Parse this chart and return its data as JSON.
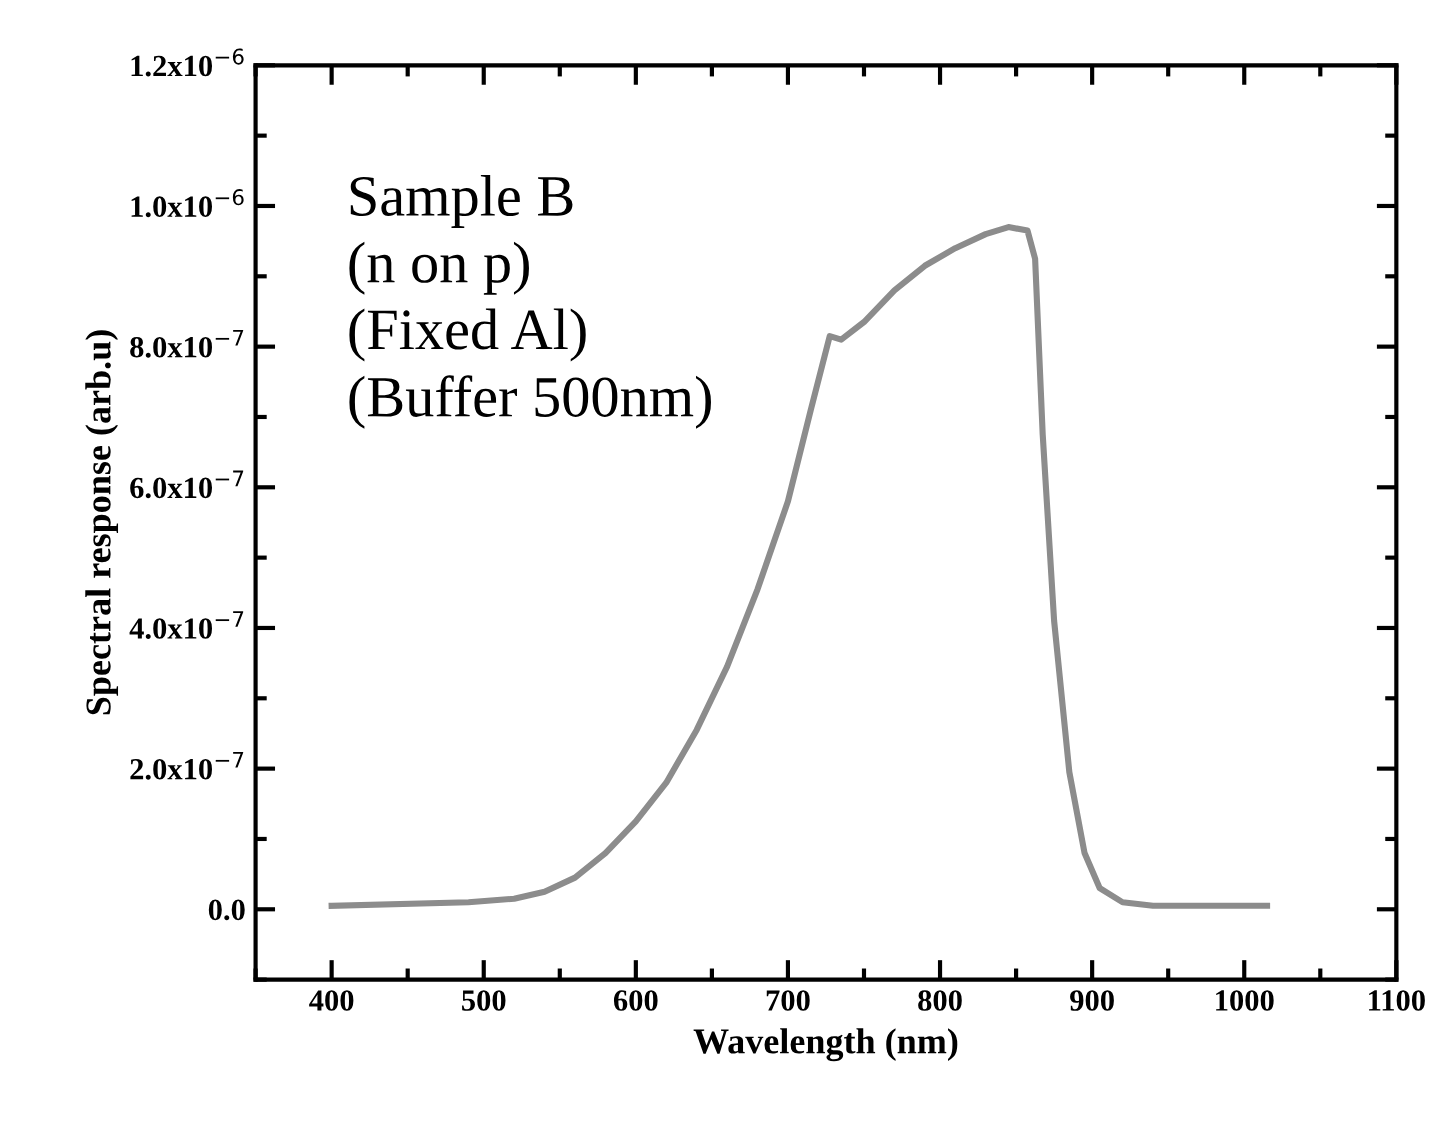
{
  "chart_data": {
    "type": "line",
    "xlabel": "Wavelength (nm)",
    "ylabel": "Spectral response (arb.u)",
    "annotations": [
      "Sample B",
      "(n on p)",
      "(Fixed Al)",
      "(Buffer 500nm)"
    ],
    "x": [
      400,
      490,
      520,
      540,
      560,
      580,
      600,
      620,
      640,
      660,
      680,
      700,
      715,
      727.5,
      735,
      750,
      770,
      790,
      810,
      830,
      845,
      857.5,
      862.5,
      867.5,
      875,
      885,
      895,
      905,
      920,
      940,
      1015
    ],
    "series": [
      {
        "color": "#8c8c8c",
        "values": [
          5e-09,
          1e-08,
          1.5e-08,
          2.5e-08,
          4.5e-08,
          8e-08,
          1.25e-07,
          1.8e-07,
          2.55e-07,
          3.45e-07,
          4.55e-07,
          5.8e-07,
          7.1e-07,
          8.15e-07,
          8.1e-07,
          8.35e-07,
          8.8e-07,
          9.15e-07,
          9.4e-07,
          9.6e-07,
          9.7e-07,
          9.65e-07,
          9.25e-07,
          6.75e-07,
          4.1e-07,
          1.95e-07,
          8e-08,
          3e-08,
          1e-08,
          5e-09,
          5e-09
        ]
      }
    ],
    "xlim": [
      350,
      1100
    ],
    "xticks": [
      400,
      500,
      600,
      700,
      800,
      900,
      1000,
      1100
    ],
    "ylim": [
      -1e-07,
      1.2e-06
    ],
    "yticks": [
      {
        "value": 0,
        "label": "0.0"
      },
      {
        "value": 2e-07,
        "label": "2.0x10$^{−7}$"
      },
      {
        "value": 4e-07,
        "label": "4.0x10$^{−7}$"
      },
      {
        "value": 6e-07,
        "label": "6.0x10$^{−7}$"
      },
      {
        "value": 8e-07,
        "label": "8.0x10$^{−7}$"
      },
      {
        "value": 1e-06,
        "label": "1.0x10$^{−6}$"
      },
      {
        "value": 1.2e-06,
        "label": "1.2x10$^{−6}$"
      }
    ],
    "grid": false,
    "marker": "none",
    "line_style": "solid"
  }
}
